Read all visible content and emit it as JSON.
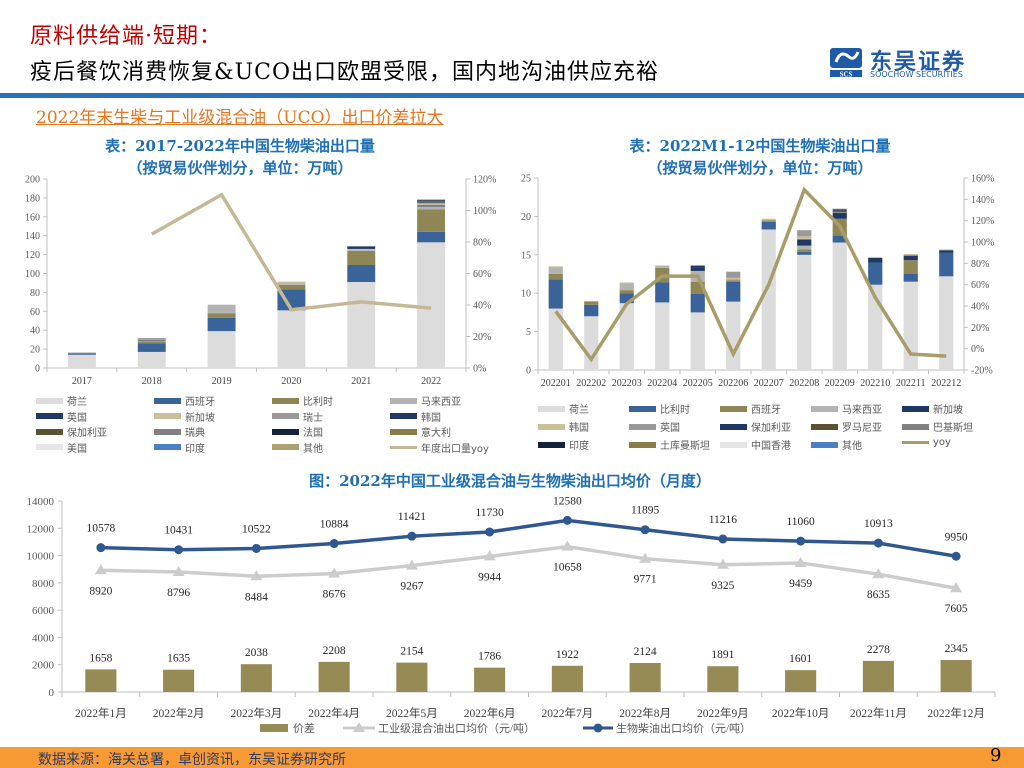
{
  "header": {
    "title_line1": "原料供给端·短期：",
    "title_line2": "疫后餐饮消费恢复&UCO出口欧盟受限，国内地沟油供应充裕",
    "logo_name": "东吴证券",
    "logo_sub": "SOOCHOW SECURITIES",
    "logo_mark": "SCS"
  },
  "subheading": "2022年末生柴与工业级混合油（UCO）出口价差拉大",
  "footer": {
    "source": "数据来源：海关总署，卓创资讯，东吴证券研究所",
    "page_number": "9"
  },
  "colors": {
    "accent_red": "#c00000",
    "accent_blue": "#2e6fba",
    "accent_orange": "#f79a34",
    "netherlands": "#dcdcdc",
    "spain_blue": "#3a6399",
    "olive": "#8f8656",
    "yoy_line": "#c4b994"
  },
  "chart_data": [
    {
      "type": "bar",
      "stacked": true,
      "title": "表：2017-2022年中国生物柴油出口量",
      "subtitle": "（按贸易伙伴划分，单位：万吨）",
      "categories": [
        "2017",
        "2018",
        "2019",
        "2020",
        "2021",
        "2022"
      ],
      "ylim": [
        0,
        200
      ],
      "yticks": [
        "0",
        "20",
        "40",
        "60",
        "80",
        "100",
        "120",
        "140",
        "160",
        "180",
        "200"
      ],
      "y2lim": [
        0,
        1.2
      ],
      "y2ticks": [
        "0%",
        "20%",
        "40%",
        "60%",
        "80%",
        "100%",
        "120%"
      ],
      "series": [
        {
          "name": "荷兰",
          "color": "#dcdcdc",
          "values": [
            14,
            17,
            39,
            61,
            91,
            133
          ]
        },
        {
          "name": "西班牙",
          "color": "#3a6399",
          "values": [
            1.5,
            9,
            14,
            22,
            18,
            11
          ]
        },
        {
          "name": "比利时",
          "color": "#8f8656",
          "values": [
            0.5,
            2,
            5,
            5,
            15,
            24
          ]
        },
        {
          "name": "马来西亚",
          "color": "#b3b3b3",
          "values": [
            0.5,
            1.5,
            9,
            2,
            1,
            3
          ]
        },
        {
          "name": "英国",
          "color": "#1f3864",
          "values": [
            0,
            0.5,
            0,
            0,
            0,
            1
          ]
        },
        {
          "name": "新加坡",
          "color": "#c9bf98",
          "values": [
            0,
            0.5,
            0,
            1.5,
            1,
            2
          ]
        },
        {
          "name": "瑞士",
          "color": "#999999",
          "values": [
            0,
            0.5,
            0,
            0,
            0,
            1
          ]
        },
        {
          "name": "韩国",
          "color": "#203864",
          "values": [
            0,
            0,
            0,
            0,
            3,
            1
          ]
        },
        {
          "name": "保加利亚",
          "color": "#5b5236",
          "values": [
            0,
            0,
            0,
            0,
            0,
            0.5
          ]
        },
        {
          "name": "瑞典",
          "color": "#808080",
          "values": [
            0,
            0.5,
            0,
            0,
            0,
            0.5
          ]
        },
        {
          "name": "法国",
          "color": "#14213d",
          "values": [
            0,
            0,
            0,
            0,
            0,
            1
          ]
        },
        {
          "name": "意大利",
          "color": "#8a7d4a",
          "values": [
            0,
            0,
            0,
            0,
            0,
            0.5
          ]
        },
        {
          "name": "美国",
          "color": "#e6e6e6",
          "values": [
            0,
            0,
            0,
            0.5,
            0.5,
            0.5
          ]
        },
        {
          "name": "印度",
          "color": "#4a7fc1",
          "values": [
            0,
            0,
            0,
            0,
            0,
            0
          ]
        },
        {
          "name": "其他",
          "color": "#ada073",
          "values": [
            0,
            0,
            0,
            0,
            0,
            0
          ]
        }
      ],
      "line": {
        "name": "年度出口量yoy",
        "color": "#c4b994",
        "values": [
          null,
          0.85,
          1.1,
          0.37,
          0.42,
          0.38
        ],
        "axis": "right"
      }
    },
    {
      "type": "bar",
      "stacked": true,
      "title": "表：2022M1-12中国生物柴油出口量",
      "subtitle": "（按贸易伙伴划分，单位：万吨）",
      "categories": [
        "202201",
        "202202",
        "202203",
        "202204",
        "202205",
        "202206",
        "202207",
        "202208",
        "202209",
        "202210",
        "202211",
        "202212"
      ],
      "ylim": [
        0,
        25
      ],
      "yticks": [
        "0",
        "5",
        "10",
        "15",
        "20",
        "25"
      ],
      "y2lim": [
        -0.2,
        1.6
      ],
      "y2ticks": [
        "-20%",
        "0%",
        "20%",
        "40%",
        "60%",
        "80%",
        "100%",
        "120%",
        "140%",
        "160%"
      ],
      "series": [
        {
          "name": "荷兰",
          "color": "#dcdcdc",
          "values": [
            8.0,
            7.0,
            8.7,
            8.8,
            7.5,
            8.9,
            18.3,
            15.0,
            16.6,
            11.1,
            11.5,
            12.2
          ]
        },
        {
          "name": "比利时",
          "color": "#3a6399",
          "values": [
            3.8,
            1.5,
            1.3,
            2.6,
            2.4,
            2.6,
            1.0,
            0.4,
            0.9,
            2.9,
            1.0,
            3.1
          ]
        },
        {
          "name": "西班牙",
          "color": "#8f8656",
          "values": [
            0.7,
            0.4,
            0.4,
            1.9,
            1.6,
            0.2,
            0.2,
            0.3,
            2.2,
            0,
            1.8,
            0
          ]
        },
        {
          "name": "马来西亚",
          "color": "#b3b3b3",
          "values": [
            0.9,
            0.1,
            0.9,
            0.3,
            1.4,
            0.2,
            0,
            0.5,
            0,
            0,
            0,
            0
          ]
        },
        {
          "name": "新加坡",
          "color": "#1f3864",
          "values": [
            0,
            0,
            0,
            0,
            0.5,
            0,
            0,
            0.8,
            0.8,
            0.6,
            0.6,
            0.3
          ]
        },
        {
          "name": "韩国",
          "color": "#c9bf98",
          "values": [
            0.1,
            0,
            0.1,
            0,
            0,
            0.1,
            0.2,
            0.4,
            0.1,
            0.1,
            0.2,
            0.1
          ]
        },
        {
          "name": "英国",
          "color": "#999999",
          "values": [
            0,
            0,
            0,
            0,
            0,
            0.8,
            0,
            0.8,
            0,
            0,
            0,
            0
          ]
        },
        {
          "name": "保加利亚",
          "color": "#203864",
          "values": [
            0,
            0,
            0,
            0,
            0.2,
            0,
            0,
            0,
            0.2,
            0,
            0,
            0
          ]
        },
        {
          "name": "罗马尼亚",
          "color": "#5b5236",
          "values": [
            0,
            0,
            0,
            0,
            0,
            0,
            0,
            0,
            0.1,
            0,
            0,
            0
          ]
        },
        {
          "name": "巴基斯坦",
          "color": "#808080",
          "values": [
            0,
            0,
            0,
            0,
            0,
            0,
            0,
            0,
            0.1,
            0,
            0,
            0
          ]
        },
        {
          "name": "印度",
          "color": "#14213d",
          "values": [
            0,
            0,
            0,
            0,
            0,
            0,
            0,
            0,
            0,
            0,
            0,
            0
          ]
        },
        {
          "name": "土库曼斯坦",
          "color": "#8a7d4a",
          "values": [
            0,
            0,
            0,
            0,
            0,
            0,
            0,
            0,
            0,
            0,
            0,
            0
          ]
        },
        {
          "name": "中国香港",
          "color": "#e6e6e6",
          "values": [
            0,
            0,
            0,
            0,
            0,
            0,
            0,
            0,
            0,
            0,
            0,
            0
          ]
        },
        {
          "name": "其他",
          "color": "#4a7fc1",
          "values": [
            0,
            0,
            0,
            0,
            0,
            0,
            0,
            0,
            0,
            0,
            0,
            0
          ]
        }
      ],
      "line": {
        "name": "yoy",
        "color": "#a89c68",
        "values": [
          0.35,
          -0.1,
          0.42,
          0.68,
          0.68,
          -0.05,
          0.6,
          1.49,
          1.15,
          0.48,
          -0.05,
          -0.07
        ],
        "axis": "right"
      }
    },
    {
      "type": "line",
      "title": "图：2022年中国工业级混合油与生物柴油出口均价（月度）",
      "categories": [
        "2022年1月",
        "2022年2月",
        "2022年3月",
        "2022年4月",
        "2022年5月",
        "2022年6月",
        "2022年7月",
        "2022年8月",
        "2022年9月",
        "2022年10月",
        "2022年11月",
        "2022年12月"
      ],
      "ylim": [
        0,
        14000
      ],
      "yticks": [
        "0",
        "2000",
        "4000",
        "6000",
        "8000",
        "10000",
        "12000",
        "14000"
      ],
      "series": [
        {
          "name": "价差",
          "type": "bar",
          "color": "#968a55",
          "values": [
            1658,
            1635,
            2038,
            2208,
            2154,
            1786,
            1922,
            2124,
            1891,
            1601,
            2278,
            2345
          ]
        },
        {
          "name": "工业级混合油出口均价（元/吨）",
          "type": "line",
          "marker": "triangle",
          "color": "#cccccc",
          "values": [
            8920,
            8796,
            8484,
            8676,
            9267,
            9944,
            10658,
            9771,
            9325,
            9459,
            8635,
            7605
          ]
        },
        {
          "name": "生物柴油出口均价（元/吨）",
          "type": "line",
          "marker": "circle",
          "color": "#2f5790",
          "values": [
            10578,
            10431,
            10522,
            10884,
            11421,
            11730,
            12580,
            11895,
            11216,
            11060,
            10913,
            9950
          ]
        }
      ]
    }
  ]
}
